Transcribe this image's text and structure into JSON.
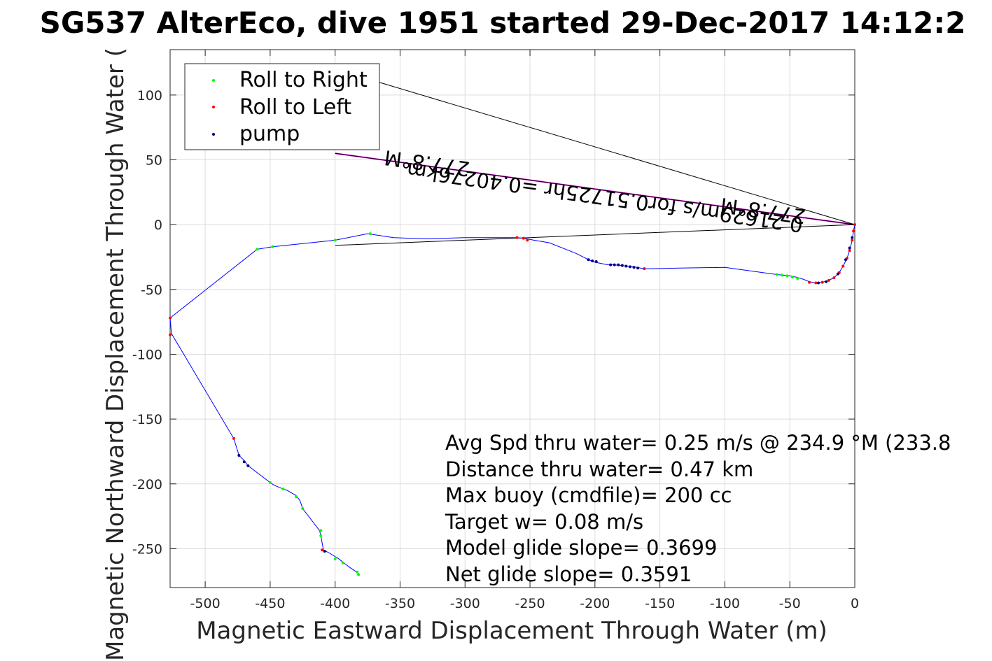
{
  "chart_data": {
    "type": "line",
    "title": "SG537 AlterEco, dive 1951 started 29-Dec-2017 14:12:2",
    "xlabel": "Magnetic Eastward Displacement Through Water (m)",
    "ylabel": "Magnetic Northward Displacement Through Water (",
    "xlim": [
      -527,
      0
    ],
    "ylim": [
      -280,
      135
    ],
    "x_ticks": [
      -500,
      -450,
      -400,
      -350,
      -300,
      -250,
      -200,
      -150,
      -100,
      -50,
      0
    ],
    "y_ticks": [
      100,
      50,
      0,
      -50,
      -100,
      -150,
      -200,
      -250
    ],
    "grid": true,
    "legend": {
      "placement": "top-left",
      "entries": [
        {
          "label": "Roll to Right",
          "color": "#00ff00"
        },
        {
          "label": "Roll to Left",
          "color": "#ff0000"
        },
        {
          "label": "pump",
          "color": "#000080"
        }
      ]
    },
    "track": {
      "color": "#0000ff",
      "points": [
        [
          0,
          0
        ],
        [
          -1,
          -5
        ],
        [
          -2,
          -12
        ],
        [
          -4,
          -20
        ],
        [
          -6,
          -26
        ],
        [
          -9,
          -32
        ],
        [
          -12,
          -37
        ],
        [
          -16,
          -41
        ],
        [
          -20,
          -43
        ],
        [
          -25,
          -44.5
        ],
        [
          -30,
          -45
        ],
        [
          -35,
          -44
        ],
        [
          -40,
          -42
        ],
        [
          -45,
          -40.5
        ],
        [
          -50,
          -39.5
        ],
        [
          -55,
          -39
        ],
        [
          -60,
          -38.5
        ],
        [
          -100,
          -33
        ],
        [
          -135,
          -33.5
        ],
        [
          -160,
          -34
        ],
        [
          -165,
          -33.5
        ],
        [
          -170,
          -32.5
        ],
        [
          -175,
          -32
        ],
        [
          -180,
          -31.5
        ],
        [
          -185,
          -31
        ],
        [
          -190,
          -31
        ],
        [
          -200,
          -29
        ],
        [
          -205,
          -27
        ],
        [
          -215,
          -22
        ],
        [
          -235,
          -14
        ],
        [
          -247,
          -12
        ],
        [
          -252,
          -11
        ],
        [
          -255,
          -10.5
        ],
        [
          -260,
          -10
        ],
        [
          -300,
          -10
        ],
        [
          -330,
          -11
        ],
        [
          -355,
          -10
        ],
        [
          -375,
          -7
        ],
        [
          -400,
          -12
        ],
        [
          -448,
          -17
        ],
        [
          -460,
          -19
        ],
        [
          -527,
          -72
        ],
        [
          -526,
          -84
        ],
        [
          -478,
          -165
        ],
        [
          -474,
          -178
        ],
        [
          -470,
          -182
        ],
        [
          -467,
          -186
        ],
        [
          -450,
          -199
        ],
        [
          -447,
          -201
        ],
        [
          -440,
          -204
        ],
        [
          -437,
          -205
        ],
        [
          -430,
          -209
        ],
        [
          -427,
          -213
        ],
        [
          -425,
          -219
        ],
        [
          -412,
          -236
        ],
        [
          -411,
          -240
        ],
        [
          -409,
          -251
        ],
        [
          -405,
          -253
        ],
        [
          -397,
          -258
        ],
        [
          -392,
          -262
        ],
        [
          -388,
          -265
        ],
        [
          -382,
          -269
        ]
      ]
    },
    "markers": {
      "roll_right": {
        "color": "#00ff00",
        "points": [
          [
            -60,
            -38.5
          ],
          [
            -56,
            -39
          ],
          [
            -52,
            -39.5
          ],
          [
            -48,
            -40.5
          ],
          [
            -44,
            -41.5
          ],
          [
            -373,
            -7
          ],
          [
            -400,
            -12
          ],
          [
            -448,
            -17
          ],
          [
            -460,
            -19
          ],
          [
            -450,
            -199
          ],
          [
            -440,
            -204
          ],
          [
            -430,
            -210
          ],
          [
            -425,
            -219
          ],
          [
            -411,
            -236
          ],
          [
            -411,
            -240
          ],
          [
            -400,
            -258
          ],
          [
            -394,
            -261
          ],
          [
            -383,
            -268
          ],
          [
            -382,
            -270
          ]
        ]
      },
      "roll_left": {
        "color": "#ff0000",
        "points": [
          [
            0,
            0
          ],
          [
            -1,
            -5
          ],
          [
            -2,
            -12
          ],
          [
            -4,
            -20
          ],
          [
            -6,
            -26
          ],
          [
            -9,
            -32
          ],
          [
            -12,
            -37
          ],
          [
            -16,
            -41
          ],
          [
            -20,
            -43
          ],
          [
            -25,
            -44.5
          ],
          [
            -30,
            -45
          ],
          [
            -35,
            -44.5
          ],
          [
            -260,
            -10
          ],
          [
            -255,
            -10.5
          ],
          [
            -252,
            -12
          ],
          [
            -162,
            -34
          ],
          [
            -527,
            -72
          ],
          [
            -527,
            -85
          ],
          [
            -478,
            -165
          ],
          [
            -410,
            -251
          ]
        ]
      },
      "pump": {
        "color": "#000080",
        "points": [
          [
            -205,
            -27
          ],
          [
            -202,
            -28
          ],
          [
            -199,
            -28.5
          ],
          [
            -188,
            -31
          ],
          [
            -185,
            -31
          ],
          [
            -182,
            -31
          ],
          [
            -179,
            -31.5
          ],
          [
            -176,
            -32
          ],
          [
            -173,
            -32.5
          ],
          [
            -170,
            -33
          ],
          [
            -167,
            -33.5
          ],
          [
            -474,
            -178
          ],
          [
            -470,
            -183
          ],
          [
            -467,
            -186
          ],
          [
            -408,
            -252
          ],
          [
            -2,
            -10
          ],
          [
            -4,
            -18
          ],
          [
            -7,
            -27
          ],
          [
            -13,
            -38
          ],
          [
            -22,
            -44
          ],
          [
            -28,
            -45
          ]
        ]
      }
    },
    "annotations": {
      "heading_lines": [
        {
          "from": [
            0,
            0
          ],
          "to": [
            -400,
            55
          ],
          "color": "#ff00ff"
        },
        {
          "from": [
            0,
            0
          ],
          "to": [
            -400,
            55
          ],
          "color": "#000000"
        },
        {
          "from": [
            0,
            0
          ],
          "to": [
            -400,
            120
          ],
          "color": "#000000"
        },
        {
          "from": [
            0,
            0
          ],
          "to": [
            -400,
            -16
          ],
          "color": "#000000"
        }
      ],
      "current_label": "0.21629m/s for0.51725hr =0.40276km",
      "heading_labels": [
        "277.8°M",
        "277.8°M"
      ]
    },
    "stats": [
      "Avg Spd thru water=  0.25 m/s @ 234.9 °M (233.8",
      "Distance thru water=  0.47 km",
      "Max buoy (cmdfile)= 200 cc",
      "Target w= 0.08 m/s",
      "Model glide slope= 0.3699",
      "Net glide slope= 0.3591"
    ]
  }
}
